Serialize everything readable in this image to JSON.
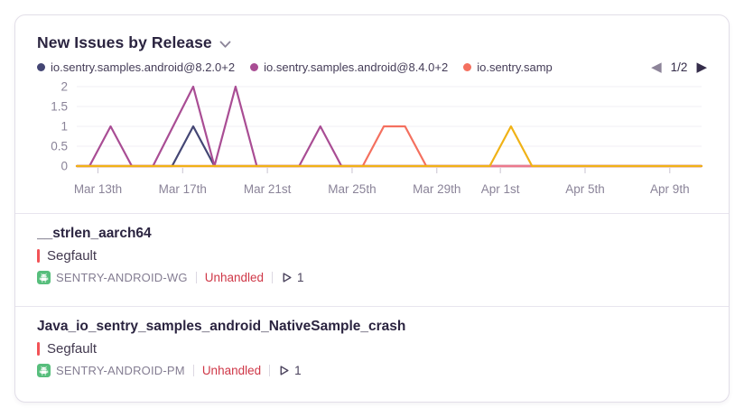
{
  "header": {
    "title": "New Issues by Release",
    "pagination": {
      "page_label": "1/2",
      "prev_glyph": "◀",
      "next_glyph": "▶"
    }
  },
  "legend": {
    "items": [
      {
        "label": "io.sentry.samples.android@8.2.0+2",
        "color": "#444674"
      },
      {
        "label": "io.sentry.samples.android@8.4.0+2",
        "color": "#a94d94"
      },
      {
        "label": "io.sentry.samp",
        "color": "#f4705f"
      }
    ]
  },
  "chart_data": {
    "type": "line",
    "title": "New Issues by Release",
    "legend_position": "top",
    "grid": true,
    "ylabel": "",
    "xlabel": "",
    "y_axis": {
      "min": 0,
      "max": 2,
      "ticks": [
        0,
        0.5,
        1,
        1.5,
        2
      ]
    },
    "x_axis": {
      "domain": [
        0,
        29.5
      ],
      "unit": "days (0 = Mar 12)",
      "ticks": [
        {
          "label": "Mar 13th",
          "day": 1
        },
        {
          "label": "Mar 17th",
          "day": 5
        },
        {
          "label": "Mar 21st",
          "day": 9
        },
        {
          "label": "Mar 25th",
          "day": 13
        },
        {
          "label": "Mar 29th",
          "day": 17
        },
        {
          "label": "Apr 1st",
          "day": 20
        },
        {
          "label": "Apr 5th",
          "day": 24
        },
        {
          "label": "Apr 9th",
          "day": 28
        }
      ]
    },
    "series": [
      {
        "name": "io.sentry.samples.android@8.2.0+2",
        "color": "#444674",
        "points": [
          [
            0,
            0
          ],
          [
            4.5,
            0
          ],
          [
            5.5,
            1
          ],
          [
            6.5,
            0
          ],
          [
            29.5,
            0
          ]
        ]
      },
      {
        "name": "io.sentry.samples.android@8.4.0+2",
        "color": "#a94d94",
        "points": [
          [
            0,
            0
          ],
          [
            0.6,
            0
          ],
          [
            1.6,
            1
          ],
          [
            2.6,
            0
          ],
          [
            3.6,
            0
          ],
          [
            5.5,
            2
          ],
          [
            6.5,
            0
          ],
          [
            7.5,
            2
          ],
          [
            8.5,
            0
          ],
          [
            10.5,
            0
          ],
          [
            11.5,
            1
          ],
          [
            12.5,
            0
          ],
          [
            29.5,
            0
          ]
        ]
      },
      {
        "name": "io.sentry.samp",
        "color": "#f4705f",
        "points": [
          [
            0,
            0
          ],
          [
            13.5,
            0
          ],
          [
            14.5,
            1
          ],
          [
            15.5,
            1
          ],
          [
            16.5,
            0
          ],
          [
            29.5,
            0
          ]
        ]
      },
      {
        "name": "unlabeled (legend page 2, rose)",
        "color": "#ec798c",
        "points": [
          [
            0,
            0
          ],
          [
            29.5,
            0
          ]
        ]
      },
      {
        "name": "unlabeled (legend page 2, amber)",
        "color": "#f0b216",
        "points": [
          [
            0,
            0
          ],
          [
            19.5,
            0
          ],
          [
            20.5,
            1
          ],
          [
            21.5,
            0
          ],
          [
            29.5,
            0
          ]
        ]
      }
    ]
  },
  "issues": [
    {
      "title": "__strlen_aarch64",
      "error_type": "Segfault",
      "project": "SENTRY-ANDROID-WG",
      "unhandled_label": "Unhandled",
      "event_count": "1"
    },
    {
      "title": "Java_io_sentry_samples_android_NativeSample_crash",
      "error_type": "Segfault",
      "project": "SENTRY-ANDROID-PM",
      "unhandled_label": "Unhandled",
      "event_count": "1"
    }
  ],
  "colors": {
    "unhandled_text": "#cf3747",
    "segfault_bar": "#f25357",
    "android_icon_green": "#57be7c",
    "title_text": "#2b2440"
  }
}
